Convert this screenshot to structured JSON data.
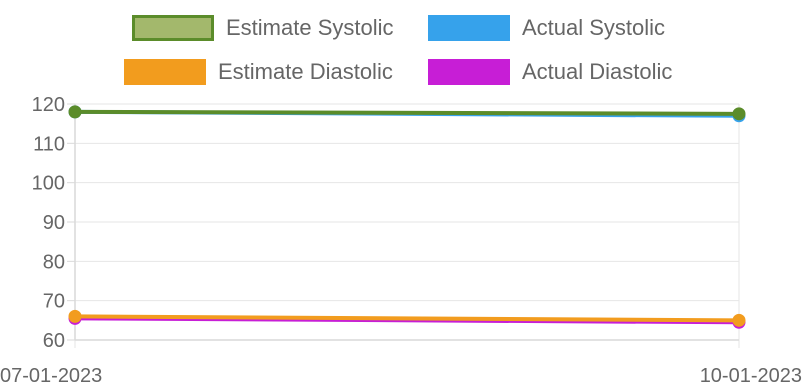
{
  "chart_data": {
    "type": "line",
    "categories": [
      "07-01-2023",
      "10-01-2023"
    ],
    "ylim": [
      60,
      120
    ],
    "yticks": [
      60,
      70,
      80,
      90,
      100,
      110,
      120
    ],
    "grid": true,
    "legend_position": "top",
    "series": [
      {
        "name": "Estimate Systolic",
        "values": [
          118,
          117.5
        ],
        "color": "#5B8C2A",
        "fill": "#A3B86C"
      },
      {
        "name": "Actual Systolic",
        "values": [
          118,
          117
        ],
        "color": "#36A2EB",
        "fill": "#36A2EB"
      },
      {
        "name": "Estimate Diastolic",
        "values": [
          66,
          65
        ],
        "color": "#F29C1E",
        "fill": "#F29C1E"
      },
      {
        "name": "Actual Diastolic",
        "values": [
          65.5,
          64.5
        ],
        "color": "#C71ED6",
        "fill": "#C71ED6"
      }
    ]
  }
}
